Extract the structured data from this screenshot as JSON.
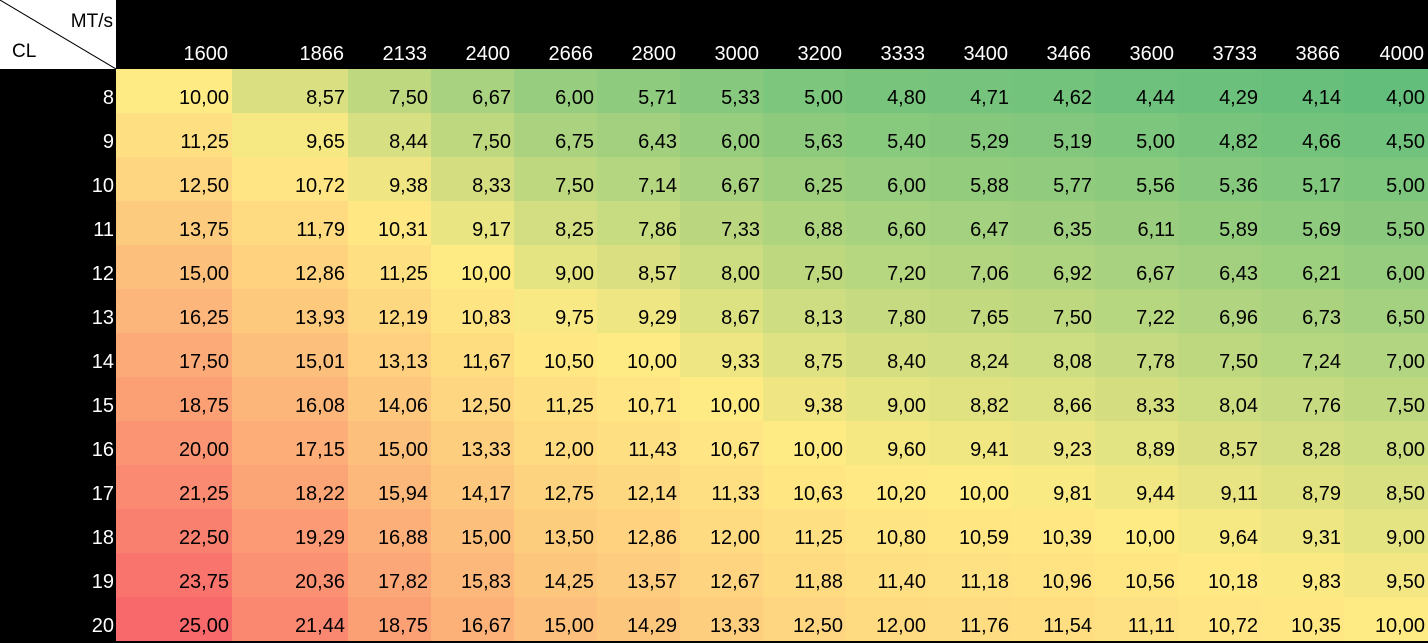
{
  "chart_data": {
    "type": "heatmap",
    "x_axis_label": "MT/s",
    "y_axis_label": "CL",
    "columns": [
      "1600",
      "1866",
      "2133",
      "2400",
      "2666",
      "2800",
      "3000",
      "3200",
      "3333",
      "3400",
      "3466",
      "3600",
      "3733",
      "3866",
      "4000"
    ],
    "rows": [
      "8",
      "9",
      "10",
      "11",
      "12",
      "13",
      "14",
      "15",
      "16",
      "17",
      "18",
      "19",
      "20"
    ],
    "values": [
      [
        "10,00",
        "8,57",
        "7,50",
        "6,67",
        "6,00",
        "5,71",
        "5,33",
        "5,00",
        "4,80",
        "4,71",
        "4,62",
        "4,44",
        "4,29",
        "4,14",
        "4,00"
      ],
      [
        "11,25",
        "9,65",
        "8,44",
        "7,50",
        "6,75",
        "6,43",
        "6,00",
        "5,63",
        "5,40",
        "5,29",
        "5,19",
        "5,00",
        "4,82",
        "4,66",
        "4,50"
      ],
      [
        "12,50",
        "10,72",
        "9,38",
        "8,33",
        "7,50",
        "7,14",
        "6,67",
        "6,25",
        "6,00",
        "5,88",
        "5,77",
        "5,56",
        "5,36",
        "5,17",
        "5,00"
      ],
      [
        "13,75",
        "11,79",
        "10,31",
        "9,17",
        "8,25",
        "7,86",
        "7,33",
        "6,88",
        "6,60",
        "6,47",
        "6,35",
        "6,11",
        "5,89",
        "5,69",
        "5,50"
      ],
      [
        "15,00",
        "12,86",
        "11,25",
        "10,00",
        "9,00",
        "8,57",
        "8,00",
        "7,50",
        "7,20",
        "7,06",
        "6,92",
        "6,67",
        "6,43",
        "6,21",
        "6,00"
      ],
      [
        "16,25",
        "13,93",
        "12,19",
        "10,83",
        "9,75",
        "9,29",
        "8,67",
        "8,13",
        "7,80",
        "7,65",
        "7,50",
        "7,22",
        "6,96",
        "6,73",
        "6,50"
      ],
      [
        "17,50",
        "15,01",
        "13,13",
        "11,67",
        "10,50",
        "10,00",
        "9,33",
        "8,75",
        "8,40",
        "8,24",
        "8,08",
        "7,78",
        "7,50",
        "7,24",
        "7,00"
      ],
      [
        "18,75",
        "16,08",
        "14,06",
        "12,50",
        "11,25",
        "10,71",
        "10,00",
        "9,38",
        "9,00",
        "8,82",
        "8,66",
        "8,33",
        "8,04",
        "7,76",
        "7,50"
      ],
      [
        "20,00",
        "17,15",
        "15,00",
        "13,33",
        "12,00",
        "11,43",
        "10,67",
        "10,00",
        "9,60",
        "9,41",
        "9,23",
        "8,89",
        "8,57",
        "8,28",
        "8,00"
      ],
      [
        "21,25",
        "18,22",
        "15,94",
        "14,17",
        "12,75",
        "12,14",
        "11,33",
        "10,63",
        "10,20",
        "10,00",
        "9,81",
        "9,44",
        "9,11",
        "8,79",
        "8,50"
      ],
      [
        "22,50",
        "19,29",
        "16,88",
        "15,00",
        "13,50",
        "12,86",
        "12,00",
        "11,25",
        "10,80",
        "10,59",
        "10,39",
        "10,00",
        "9,64",
        "9,31",
        "9,00"
      ],
      [
        "23,75",
        "20,36",
        "17,82",
        "15,83",
        "14,25",
        "13,57",
        "12,67",
        "11,88",
        "11,40",
        "11,18",
        "10,96",
        "10,56",
        "10,18",
        "9,83",
        "9,50"
      ],
      [
        "25,00",
        "21,44",
        "18,75",
        "16,67",
        "15,00",
        "14,29",
        "13,33",
        "12,50",
        "12,00",
        "11,76",
        "11,54",
        "11,11",
        "10,72",
        "10,35",
        "10,00"
      ]
    ],
    "color_scale": {
      "low": "#63be7b",
      "mid": "#ffeb84",
      "high": "#f8696b",
      "mid_value": 10
    }
  }
}
